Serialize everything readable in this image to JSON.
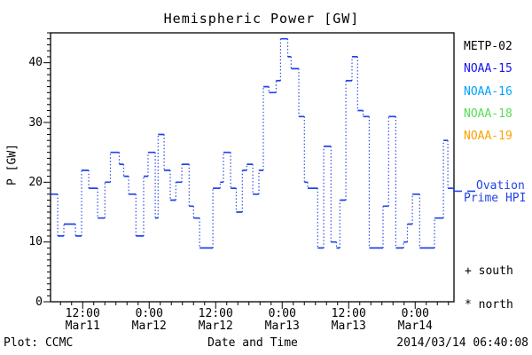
{
  "header": {
    "title": "Hemispheric Power [GW]"
  },
  "footer": {
    "plot_credit": "Plot: CCMC",
    "xaxis_title": "Date and Time",
    "timestamp": "2014/03/14 06:40:08"
  },
  "legend": {
    "satellites": [
      {
        "label": "METP-02",
        "color": "#000000"
      },
      {
        "label": "NOAA-15",
        "color": "#1414f0"
      },
      {
        "label": "NOAA-16",
        "color": "#00a2ff"
      },
      {
        "label": "NOAA-18",
        "color": "#57dd57"
      },
      {
        "label": "NOAA-19",
        "color": "#ffa200"
      }
    ],
    "series_label_line1": "Ovation",
    "series_label_line2": "Prime HPI",
    "south_marker": "+ south",
    "north_marker": "* north"
  },
  "chart_data": {
    "type": "line",
    "subtype": "steps (solid horizontal segments, dotted vertical connectors)",
    "title": "Hemispheric Power [GW]",
    "xlabel": "Date and Time",
    "ylabel": "P [GW]",
    "ylim": [
      0,
      45
    ],
    "y_major_ticks": [
      0,
      10,
      20,
      30,
      40
    ],
    "y_minor_step": 1,
    "x_unit": "hours since 2014-03-11 00:00 UT",
    "xlim_hours": [
      6.2,
      79.0
    ],
    "x_minor_step_hours": 2,
    "x_ticks": [
      {
        "hour": 12,
        "time": "12:00",
        "date": "Mar11"
      },
      {
        "hour": 24,
        "time": "0:00",
        "date": "Mar12"
      },
      {
        "hour": 36,
        "time": "12:00",
        "date": "Mar12"
      },
      {
        "hour": 48,
        "time": "0:00",
        "date": "Mar13"
      },
      {
        "hour": 60,
        "time": "12:00",
        "date": "Mar13"
      },
      {
        "hour": 72,
        "time": "0:00",
        "date": "Mar14"
      }
    ],
    "series_name": "Ovation Prime HPI",
    "line_color": "#2244e6",
    "legend_sample_value": 18.5,
    "steps_t_hour_v_gw": [
      [
        6.2,
        18
      ],
      [
        7.5,
        11
      ],
      [
        8.6,
        13
      ],
      [
        10.7,
        11
      ],
      [
        11.8,
        22
      ],
      [
        13.1,
        19
      ],
      [
        14.7,
        14
      ],
      [
        16.0,
        20
      ],
      [
        17.0,
        25
      ],
      [
        18.6,
        23
      ],
      [
        19.4,
        21
      ],
      [
        20.3,
        18
      ],
      [
        21.6,
        11
      ],
      [
        23.0,
        21
      ],
      [
        23.8,
        25
      ],
      [
        25.1,
        14
      ],
      [
        25.6,
        28
      ],
      [
        26.7,
        22
      ],
      [
        27.8,
        17
      ],
      [
        28.8,
        20
      ],
      [
        29.9,
        23
      ],
      [
        31.2,
        16
      ],
      [
        32.0,
        14
      ],
      [
        33.1,
        9
      ],
      [
        35.5,
        19
      ],
      [
        36.8,
        20
      ],
      [
        37.4,
        25
      ],
      [
        38.7,
        19
      ],
      [
        39.7,
        15
      ],
      [
        40.8,
        22
      ],
      [
        41.6,
        23
      ],
      [
        42.7,
        18
      ],
      [
        43.8,
        22
      ],
      [
        44.6,
        36
      ],
      [
        45.6,
        35
      ],
      [
        46.9,
        37
      ],
      [
        47.7,
        44
      ],
      [
        49.0,
        41
      ],
      [
        49.6,
        39
      ],
      [
        51.0,
        31
      ],
      [
        52.0,
        20
      ],
      [
        52.6,
        19
      ],
      [
        54.4,
        9
      ],
      [
        55.5,
        26
      ],
      [
        56.8,
        10
      ],
      [
        57.8,
        9
      ],
      [
        58.4,
        17
      ],
      [
        59.5,
        37
      ],
      [
        60.6,
        41
      ],
      [
        61.6,
        32
      ],
      [
        62.6,
        31
      ],
      [
        63.7,
        9
      ],
      [
        66.2,
        16
      ],
      [
        67.2,
        31
      ],
      [
        68.5,
        9
      ],
      [
        69.9,
        10
      ],
      [
        70.6,
        13
      ],
      [
        71.5,
        18
      ],
      [
        72.8,
        9
      ],
      [
        75.5,
        14
      ],
      [
        77.1,
        27
      ],
      [
        77.9,
        19
      ]
    ],
    "end_hour": 79.0,
    "grid": false,
    "legend_position": "right outside"
  }
}
